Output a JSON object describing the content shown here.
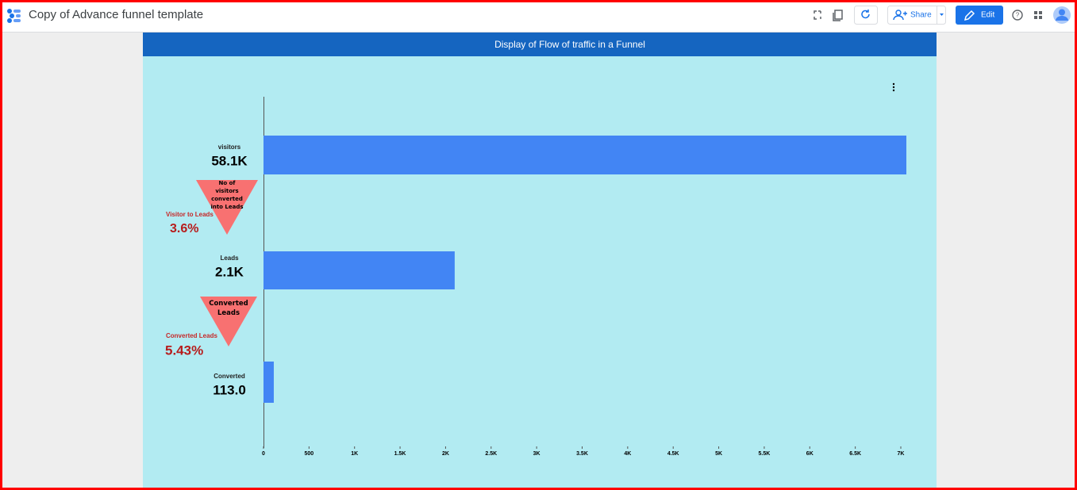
{
  "header": {
    "title": "Copy of Advance funnel template",
    "share": "Share",
    "edit": "Edit"
  },
  "chart_data": {
    "type": "bar",
    "orientation": "horizontal",
    "title": "Display of Flow of traffic in a Funnel",
    "categories": [
      "visitors",
      "Leads",
      "Converted"
    ],
    "values": [
      58100,
      2100,
      113
    ],
    "value_labels": [
      "58.1K",
      "2.1K",
      "113.0"
    ],
    "color": "#4285f4",
    "xlim": [
      0,
      7000
    ],
    "xticks": [
      0,
      500,
      {
        "value": 1000,
        "label": "1K"
      },
      {
        "value": 1500,
        "label": "1.5K"
      },
      {
        "value": 2000,
        "label": "2K"
      },
      {
        "value": 2500,
        "label": "2.5K"
      },
      {
        "value": 3000,
        "label": "3K"
      },
      {
        "value": 3500,
        "label": "3.5K"
      },
      {
        "value": 4000,
        "label": "4K"
      },
      {
        "value": 4500,
        "label": "4.5K"
      },
      {
        "value": 5000,
        "label": "5K"
      },
      {
        "value": 5500,
        "label": "5.5K"
      },
      {
        "value": 6000,
        "label": "6K"
      },
      {
        "value": 6500,
        "label": "6.5K"
      },
      {
        "value": 7000,
        "label": "7K"
      }
    ],
    "annotations": [
      {
        "label": "Visitor to Leads",
        "value": "3.6%",
        "note": "No of visitors converted into Leads"
      },
      {
        "label": "Converted Leads",
        "value": "5.43%",
        "note": "Converted Leads"
      }
    ]
  }
}
